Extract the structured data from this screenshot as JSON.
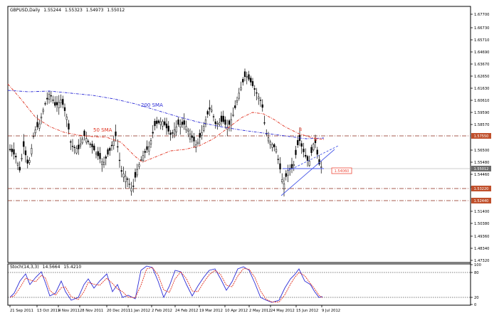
{
  "main_chart": {
    "symbol": "GBPUSD,Daily",
    "ohlc": [
      "1.55244",
      "1.55323",
      "1.54973",
      "1.55012"
    ],
    "price_ticks": [
      "1.67700",
      "1.66730",
      "1.65710",
      "1.64690",
      "1.63670",
      "1.62650",
      "1.61630",
      "1.60610",
      "1.59590",
      "1.58570",
      "1.56500",
      "1.55480",
      "1.54460",
      "1.53420",
      "1.51400",
      "1.50380",
      "1.49360",
      "1.48340",
      "1.47320"
    ],
    "level_labels": {
      "resistance": "1.57550",
      "current": "1.55012",
      "support1": "1.53220",
      "support2": "1.52440"
    },
    "target_label": "1.54060",
    "sma200_label": "200 SMA",
    "sma50_label": "50 SMA",
    "pattern_labels": [
      "B",
      "D"
    ]
  },
  "stoch": {
    "title": "Stoch(14,3,3)",
    "values": [
      "14.5664",
      "15.4210"
    ],
    "ticks": [
      "100",
      "80",
      "20",
      "0"
    ]
  },
  "x_axis": {
    "dates": [
      "21 Sep 2011",
      "13 Oct 2011",
      "4 Nov 2011",
      "28 Nov 2011",
      "20 Dec 2011",
      "11 Jan 2012",
      "2 Feb 2012",
      "24 Feb 2012",
      "19 Mar 2012",
      "10 Apr 2012",
      "2 May 2012",
      "24 May 2012",
      "15 Jun 2012",
      "9 Jul 2012"
    ]
  },
  "colors": {
    "candles": "#000000",
    "sma200": "#2b2bd6",
    "sma50": "#e0301e",
    "channel": "#4a5ae8",
    "stoch_main": "#2b2bd6",
    "stoch_signal": "#e0301e",
    "level_line": "#8b2a1a",
    "level_box": "#c0502c",
    "target_box": "#ef4a3a",
    "grid": "#000000"
  },
  "chart_data": {
    "type": "candlestick",
    "series": [
      {
        "name": "200 SMA",
        "x": [
          "21 Sep 2011",
          "13 Oct 2011",
          "4 Nov 2011",
          "28 Nov 2011",
          "20 Dec 2011",
          "11 Jan 2012",
          "2 Feb 2012",
          "24 Feb 2012",
          "19 Mar 2012",
          "10 Apr 2012",
          "2 May 2012",
          "24 May 2012",
          "15 Jun 2012",
          "9 Jul 2012"
        ],
        "values": [
          1.618,
          1.6175,
          1.616,
          1.613,
          1.611,
          1.608,
          1.605,
          1.6005,
          1.596,
          1.5925,
          1.59,
          1.585,
          1.5825,
          1.58
        ]
      },
      {
        "name": "50 SMA",
        "x": [
          "21 Sep 2011",
          "13 Oct 2011",
          "4 Nov 2011",
          "28 Nov 2011",
          "20 Dec 2011",
          "11 Jan 2012",
          "2 Feb 2012",
          "24 Feb 2012",
          "19 Mar 2012",
          "10 Apr 2012",
          "2 May 2012",
          "24 May 2012",
          "15 Jun 2012",
          "9 Jul 2012"
        ],
        "values": [
          1.622,
          1.608,
          1.59,
          1.582,
          1.575,
          1.561,
          1.563,
          1.568,
          1.571,
          1.575,
          1.592,
          1.59,
          1.582,
          1.575
        ]
      },
      {
        "name": "Close",
        "x": [
          "21 Sep 2011",
          "13 Oct 2011",
          "4 Nov 2011",
          "28 Nov 2011",
          "20 Dec 2011",
          "11 Jan 2012",
          "2 Feb 2012",
          "24 Feb 2012",
          "19 Mar 2012",
          "10 Apr 2012",
          "2 May 2012",
          "24 May 2012",
          "15 Jun 2012",
          "9 Jul 2012"
        ],
        "values": [
          1.56,
          1.575,
          1.6,
          1.56,
          1.55,
          1.532,
          1.578,
          1.578,
          1.595,
          1.59,
          1.622,
          1.545,
          1.565,
          1.5501
        ]
      }
    ],
    "ylim": [
      1.467,
      1.68
    ],
    "legend": "none",
    "grid": true
  }
}
